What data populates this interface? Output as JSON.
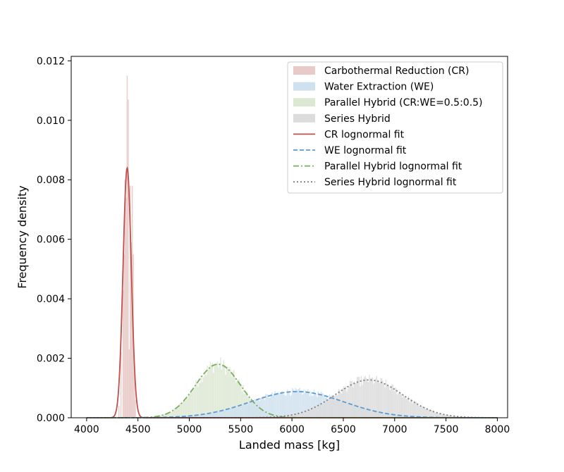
{
  "chart_data": {
    "type": "histogram",
    "title": "",
    "xlabel": "Landed mass [kg]",
    "ylabel": "Frequency density",
    "xlim": [
      3850,
      8100
    ],
    "ylim": [
      0,
      0.01215
    ],
    "xticks": [
      4000,
      4500,
      5000,
      5500,
      6000,
      6500,
      7000,
      7500,
      8000
    ],
    "xtick_labels": [
      "4000",
      "4500",
      "5000",
      "5500",
      "6000",
      "6500",
      "7000",
      "7500",
      "8000"
    ],
    "yticks": [
      0,
      0.002,
      0.004,
      0.006,
      0.008,
      0.01,
      0.012
    ],
    "ytick_labels": [
      "0.000",
      "0.002",
      "0.004",
      "0.006",
      "0.008",
      "0.010",
      "0.012"
    ],
    "grid": false,
    "legend_position": "top-right",
    "bin_width": 10,
    "series": [
      {
        "name": "Carbothermal Reduction (CR)",
        "kind": "histogram",
        "color": "#e8cbc8",
        "peak_x": 4395,
        "peak_y": 0.0084,
        "bins": [
          [
            4310,
            0.0004
          ],
          [
            4330,
            0.0022
          ],
          [
            4350,
            0.0043
          ],
          [
            4360,
            0.0055
          ],
          [
            4370,
            0.008
          ],
          [
            4380,
            0.0074
          ],
          [
            4390,
            0.0115
          ],
          [
            4400,
            0.0107
          ],
          [
            4410,
            0.0023
          ],
          [
            4420,
            0.0078
          ],
          [
            4430,
            0.0059
          ],
          [
            4440,
            0.0078
          ],
          [
            4450,
            0.0055
          ],
          [
            4460,
            0.0015
          ],
          [
            4470,
            0.0006
          ]
        ]
      },
      {
        "name": "Water Extraction (WE)",
        "kind": "histogram",
        "color": "#cfe0ef",
        "peak_x": 6050,
        "peak_y": 0.00088
      },
      {
        "name": "Parallel Hybrid (CR:WE=0.5:0.5)",
        "kind": "histogram",
        "color": "#dde8d3",
        "peak_x": 5280,
        "peak_y": 0.0018
      },
      {
        "name": "Series Hybrid",
        "kind": "histogram",
        "color": "#dcdcdc",
        "peak_x": 6750,
        "peak_y": 0.00127
      },
      {
        "name": "CR lognormal fit",
        "kind": "line",
        "color": "#c0504d",
        "dash": "solid",
        "peak_x": 4395,
        "peak_y": 0.0084,
        "sigma": 40
      },
      {
        "name": "WE lognormal fit",
        "kind": "line",
        "color": "#5a9bd5",
        "dash": "dashed",
        "peak_x": 6050,
        "peak_y": 0.00088,
        "sigma": 455
      },
      {
        "name": "Parallel Hybrid lognormal fit",
        "kind": "line",
        "color": "#7aac5e",
        "dash": "dashdot",
        "peak_x": 5280,
        "peak_y": 0.0018,
        "sigma": 220
      },
      {
        "name": "Series Hybrid lognormal fit",
        "kind": "line",
        "color": "#7f7f7f",
        "dash": "dotted",
        "peak_x": 6750,
        "peak_y": 0.00127,
        "sigma": 330
      }
    ]
  }
}
